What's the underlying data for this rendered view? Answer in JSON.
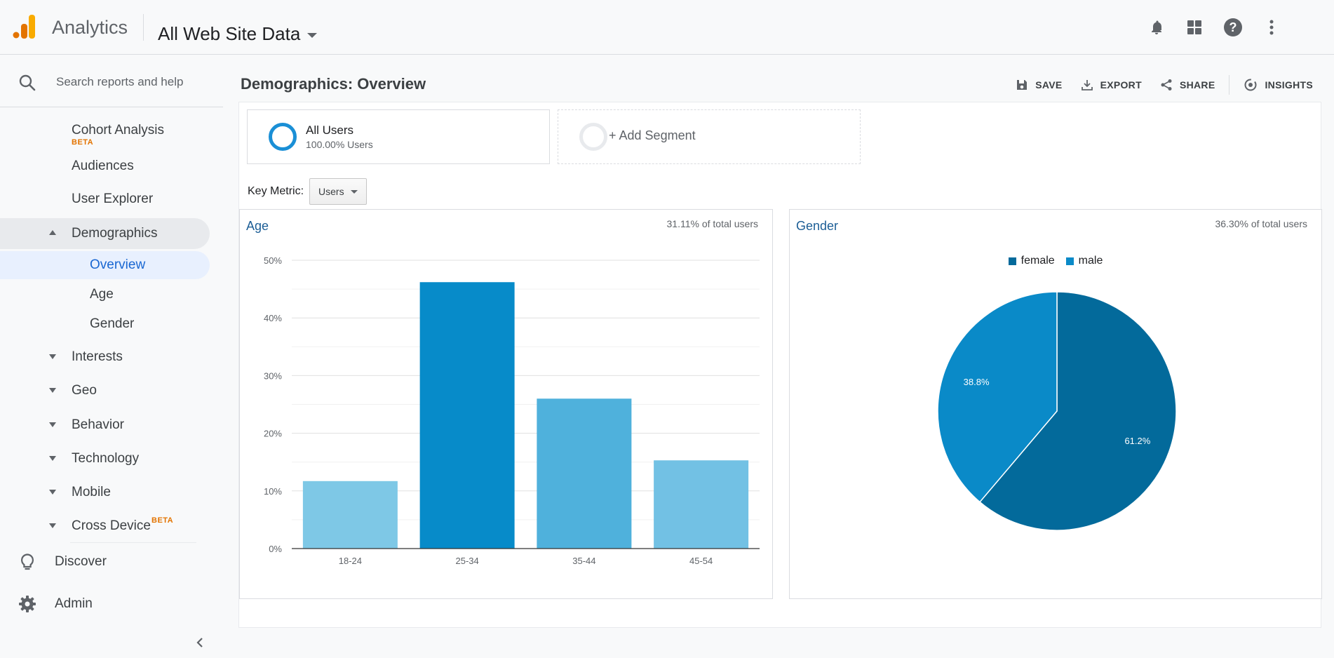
{
  "header": {
    "app_name": "Analytics",
    "property": "All Web Site Data",
    "icons": [
      "bell-icon",
      "apps-grid-icon",
      "help-icon",
      "more-vert-icon"
    ],
    "logo_colors": [
      "#f9ab00",
      "#e37400"
    ]
  },
  "sidebar": {
    "search_placeholder": "Search reports and help",
    "items": [
      {
        "label": "Cohort Analysis",
        "badge": "BETA"
      },
      {
        "label": "Audiences"
      },
      {
        "label": "User Explorer"
      },
      {
        "label": "Demographics"
      },
      {
        "label": "Overview"
      },
      {
        "label": "Age"
      },
      {
        "label": "Gender"
      },
      {
        "label": "Interests"
      },
      {
        "label": "Geo"
      },
      {
        "label": "Behavior"
      },
      {
        "label": "Technology"
      },
      {
        "label": "Mobile"
      },
      {
        "label": "Cross Device",
        "badge": "BETA"
      }
    ],
    "bottom": [
      {
        "label": "Discover",
        "icon": "lightbulb-icon"
      },
      {
        "label": "Admin",
        "icon": "gear-icon"
      }
    ]
  },
  "main": {
    "title": "Demographics: Overview",
    "actions": [
      {
        "label": "SAVE",
        "icon": "save-icon"
      },
      {
        "label": "EXPORT",
        "icon": "export-icon"
      },
      {
        "label": "SHARE",
        "icon": "share-icon"
      },
      {
        "label": "INSIGHTS",
        "icon": "insights-icon"
      }
    ],
    "segments": [
      {
        "title": "All Users",
        "subtitle": "100.00% Users"
      },
      {
        "title": "+ Add Segment"
      }
    ],
    "key_metric_label": "Key Metric:",
    "key_metric_value": "Users",
    "age_card": {
      "title": "Age",
      "share": "31.11% of total users"
    },
    "gender_card": {
      "title": "Gender",
      "share": "36.30% of total users"
    }
  },
  "chart_data": [
    {
      "type": "bar",
      "title": "Age",
      "categories": [
        "18-24",
        "25-34",
        "35-44",
        "45-54"
      ],
      "values": [
        11.7,
        46.2,
        26.0,
        15.3
      ],
      "y_ticks": [
        "0%",
        "10%",
        "20%",
        "30%",
        "40%",
        "50%"
      ],
      "ylim": [
        0,
        50
      ],
      "colors": [
        "#7ec8e6",
        "#078bc9",
        "#4fb1dc",
        "#72c1e4"
      ]
    },
    {
      "type": "pie",
      "title": "Gender",
      "series": [
        {
          "name": "female",
          "value": 61.2,
          "label": "61.2%",
          "color": "#036a9b"
        },
        {
          "name": "male",
          "value": 38.8,
          "label": "38.8%",
          "color": "#0a8ac8"
        }
      ],
      "legend_position": "top"
    }
  ]
}
